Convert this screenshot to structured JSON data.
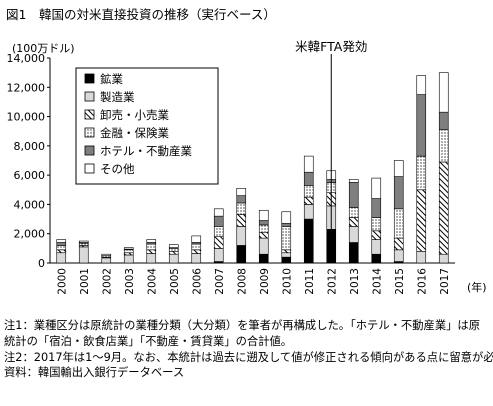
{
  "figure": {
    "title": "図1　韓国の対米直接投資の推移（実行ベース）",
    "notes": [
      "注1：業種区分は原統計の業種分類（大分類）を筆者が再構成した。「ホテル・不動産業」は原統計の「宿泊・飲食店業」「不動産・賃貸業」の合計値。",
      "注2：2017年は1〜9月。なお、本統計は過去に遡及して値が修正される傾向がある点に留意が必要。",
      "資料：韓国輸出入銀行データベース"
    ]
  },
  "chart_data": {
    "type": "bar",
    "stacked": true,
    "unit_label": "(100万ドル)",
    "x_suffix": "(年)",
    "categories": [
      "2000",
      "2001",
      "2002",
      "2003",
      "2004",
      "2005",
      "2006",
      "2007",
      "2008",
      "2009",
      "2010",
      "2011",
      "2012",
      "2013",
      "2014",
      "2015",
      "2016",
      "2017"
    ],
    "ylim": [
      0,
      14000
    ],
    "yticks": [
      0,
      2000,
      4000,
      6000,
      8000,
      10000,
      12000,
      14000
    ],
    "ytick_labels": [
      "0",
      "2,000",
      "4,000",
      "6,000",
      "8,000",
      "10,000",
      "12,000",
      "14,000"
    ],
    "legend_position": "top-left",
    "annotation": {
      "text": "米韓FTA発効",
      "x_category": "2012"
    },
    "series": [
      {
        "name": "鉱業",
        "pattern": "black",
        "values": [
          0,
          0,
          0,
          0,
          0,
          0,
          0,
          100,
          1200,
          600,
          400,
          3000,
          2300,
          1400,
          600,
          100,
          0,
          0
        ]
      },
      {
        "name": "製造業",
        "pattern": "lightgray",
        "values": [
          700,
          1100,
          350,
          550,
          650,
          600,
          650,
          900,
          1300,
          1100,
          300,
          1000,
          1600,
          1100,
          1000,
          800,
          800,
          600
        ]
      },
      {
        "name": "卸売・小売業",
        "pattern": "hatch",
        "values": [
          200,
          100,
          50,
          150,
          250,
          200,
          250,
          800,
          800,
          400,
          200,
          500,
          900,
          600,
          600,
          800,
          4200,
          6300
        ]
      },
      {
        "name": "金融・保険業",
        "pattern": "dots",
        "values": [
          300,
          150,
          100,
          200,
          400,
          200,
          400,
          700,
          800,
          500,
          1600,
          800,
          700,
          700,
          900,
          2000,
          2300,
          2200
        ]
      },
      {
        "name": "ホテル・不動産業",
        "pattern": "gray",
        "values": [
          200,
          50,
          0,
          50,
          100,
          50,
          100,
          700,
          500,
          300,
          200,
          900,
          200,
          1700,
          1300,
          2200,
          4200,
          1200
        ]
      },
      {
        "name": "その他",
        "pattern": "white",
        "values": [
          200,
          100,
          100,
          100,
          200,
          200,
          450,
          500,
          500,
          700,
          800,
          1100,
          600,
          200,
          1400,
          1100,
          1300,
          2700
        ]
      }
    ]
  }
}
